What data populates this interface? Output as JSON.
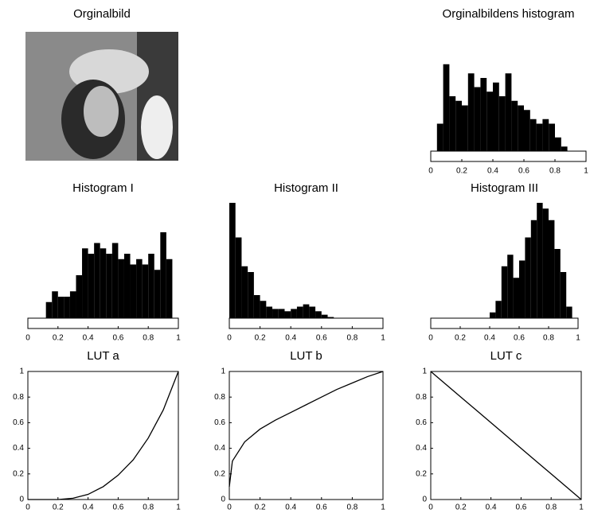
{
  "chart_data": [
    {
      "type": "image",
      "title": "Orginalbild"
    },
    {
      "type": "histogram",
      "title": "Orginalbildens histogram",
      "bins": [
        0,
        0.04,
        0.08,
        0.12,
        0.16,
        0.2,
        0.24,
        0.28,
        0.32,
        0.36,
        0.4,
        0.44,
        0.48,
        0.52,
        0.56,
        0.6,
        0.64,
        0.68,
        0.72,
        0.76,
        0.8,
        0.84,
        0.88,
        0.92,
        0.96,
        1
      ],
      "values": [
        0,
        30,
        95,
        60,
        55,
        50,
        85,
        70,
        80,
        65,
        75,
        60,
        85,
        55,
        50,
        45,
        35,
        30,
        35,
        30,
        15,
        5,
        0,
        0,
        0
      ],
      "color": "#000000",
      "xlim": [
        0,
        1
      ],
      "xticks": [
        0,
        0.2,
        0.4,
        0.6,
        0.8,
        1
      ],
      "ylim": [
        0,
        100
      ]
    },
    {
      "type": "histogram",
      "title": "Histogram I",
      "bins": [
        0,
        0.04,
        0.08,
        0.12,
        0.16,
        0.2,
        0.24,
        0.28,
        0.32,
        0.36,
        0.4,
        0.44,
        0.48,
        0.52,
        0.56,
        0.6,
        0.64,
        0.68,
        0.72,
        0.76,
        0.8,
        0.84,
        0.88,
        0.92,
        0.96,
        1
      ],
      "values": [
        0,
        0,
        0,
        15,
        25,
        20,
        20,
        25,
        40,
        65,
        60,
        70,
        65,
        60,
        70,
        55,
        60,
        50,
        55,
        50,
        60,
        45,
        80,
        55,
        0
      ],
      "color": "#000000",
      "xlim": [
        0,
        1
      ],
      "xticks": [
        0,
        0.2,
        0.4,
        0.6,
        0.8,
        1
      ],
      "ylim": [
        0,
        100
      ]
    },
    {
      "type": "histogram",
      "title": "Histogram II",
      "bins": [
        0,
        0.04,
        0.08,
        0.12,
        0.16,
        0.2,
        0.24,
        0.28,
        0.32,
        0.36,
        0.4,
        0.44,
        0.48,
        0.52,
        0.56,
        0.6,
        0.64,
        0.68,
        0.72,
        0.76,
        0.8,
        0.84,
        0.88,
        0.92,
        0.96,
        1
      ],
      "values": [
        100,
        70,
        45,
        40,
        20,
        15,
        10,
        8,
        8,
        6,
        8,
        10,
        12,
        10,
        6,
        3,
        1,
        0,
        0,
        0,
        0,
        0,
        0,
        0,
        0
      ],
      "color": "#000000",
      "xlim": [
        0,
        1
      ],
      "xticks": [
        0,
        0.2,
        0.4,
        0.6,
        0.8,
        1
      ],
      "ylim": [
        0,
        100
      ]
    },
    {
      "type": "histogram",
      "title": "Histogram III",
      "bins": [
        0,
        0.04,
        0.08,
        0.12,
        0.16,
        0.2,
        0.24,
        0.28,
        0.32,
        0.36,
        0.4,
        0.44,
        0.48,
        0.52,
        0.56,
        0.6,
        0.64,
        0.68,
        0.72,
        0.76,
        0.8,
        0.84,
        0.88,
        0.92,
        0.96,
        1
      ],
      "values": [
        0,
        0,
        0,
        0,
        0,
        0,
        0,
        0,
        0,
        0,
        5,
        15,
        45,
        55,
        35,
        50,
        70,
        85,
        100,
        95,
        85,
        60,
        40,
        10,
        0
      ],
      "color": "#000000",
      "xlim": [
        0,
        1
      ],
      "xticks": [
        0,
        0.2,
        0.4,
        0.6,
        0.8,
        1
      ],
      "ylim": [
        0,
        100
      ]
    },
    {
      "type": "line",
      "title": "LUT a",
      "x": [
        0,
        0.1,
        0.2,
        0.3,
        0.4,
        0.5,
        0.6,
        0.7,
        0.8,
        0.9,
        1
      ],
      "values": [
        0,
        0,
        0,
        0.01,
        0.04,
        0.1,
        0.19,
        0.31,
        0.48,
        0.7,
        1
      ],
      "color": "#000000",
      "xlim": [
        0,
        1
      ],
      "ylim": [
        0,
        1
      ],
      "xticks": [
        0,
        0.2,
        0.4,
        0.6,
        0.8,
        1
      ],
      "yticks": [
        0,
        0.2,
        0.4,
        0.6,
        0.8,
        1
      ]
    },
    {
      "type": "line",
      "title": "LUT b",
      "x": [
        0,
        0.02,
        0.1,
        0.2,
        0.3,
        0.4,
        0.5,
        0.6,
        0.7,
        0.8,
        0.9,
        1
      ],
      "values": [
        0.1,
        0.3,
        0.45,
        0.55,
        0.62,
        0.68,
        0.74,
        0.8,
        0.86,
        0.91,
        0.96,
        1
      ],
      "color": "#000000",
      "xlim": [
        0,
        1
      ],
      "ylim": [
        0,
        1
      ],
      "xticks": [
        0,
        0.2,
        0.4,
        0.6,
        0.8,
        1
      ],
      "yticks": [
        0,
        0.2,
        0.4,
        0.6,
        0.8,
        1
      ]
    },
    {
      "type": "line",
      "title": "LUT c",
      "x": [
        0,
        0.1,
        0.2,
        0.3,
        0.4,
        0.5,
        0.6,
        0.7,
        0.8,
        0.9,
        1
      ],
      "values": [
        1,
        0.9,
        0.8,
        0.7,
        0.6,
        0.5,
        0.4,
        0.3,
        0.2,
        0.1,
        0
      ],
      "color": "#000000",
      "xlim": [
        0,
        1
      ],
      "ylim": [
        0,
        1
      ],
      "xticks": [
        0,
        0.2,
        0.4,
        0.6,
        0.8,
        1
      ],
      "yticks": [
        0,
        0.2,
        0.4,
        0.6,
        0.8,
        1
      ]
    }
  ]
}
